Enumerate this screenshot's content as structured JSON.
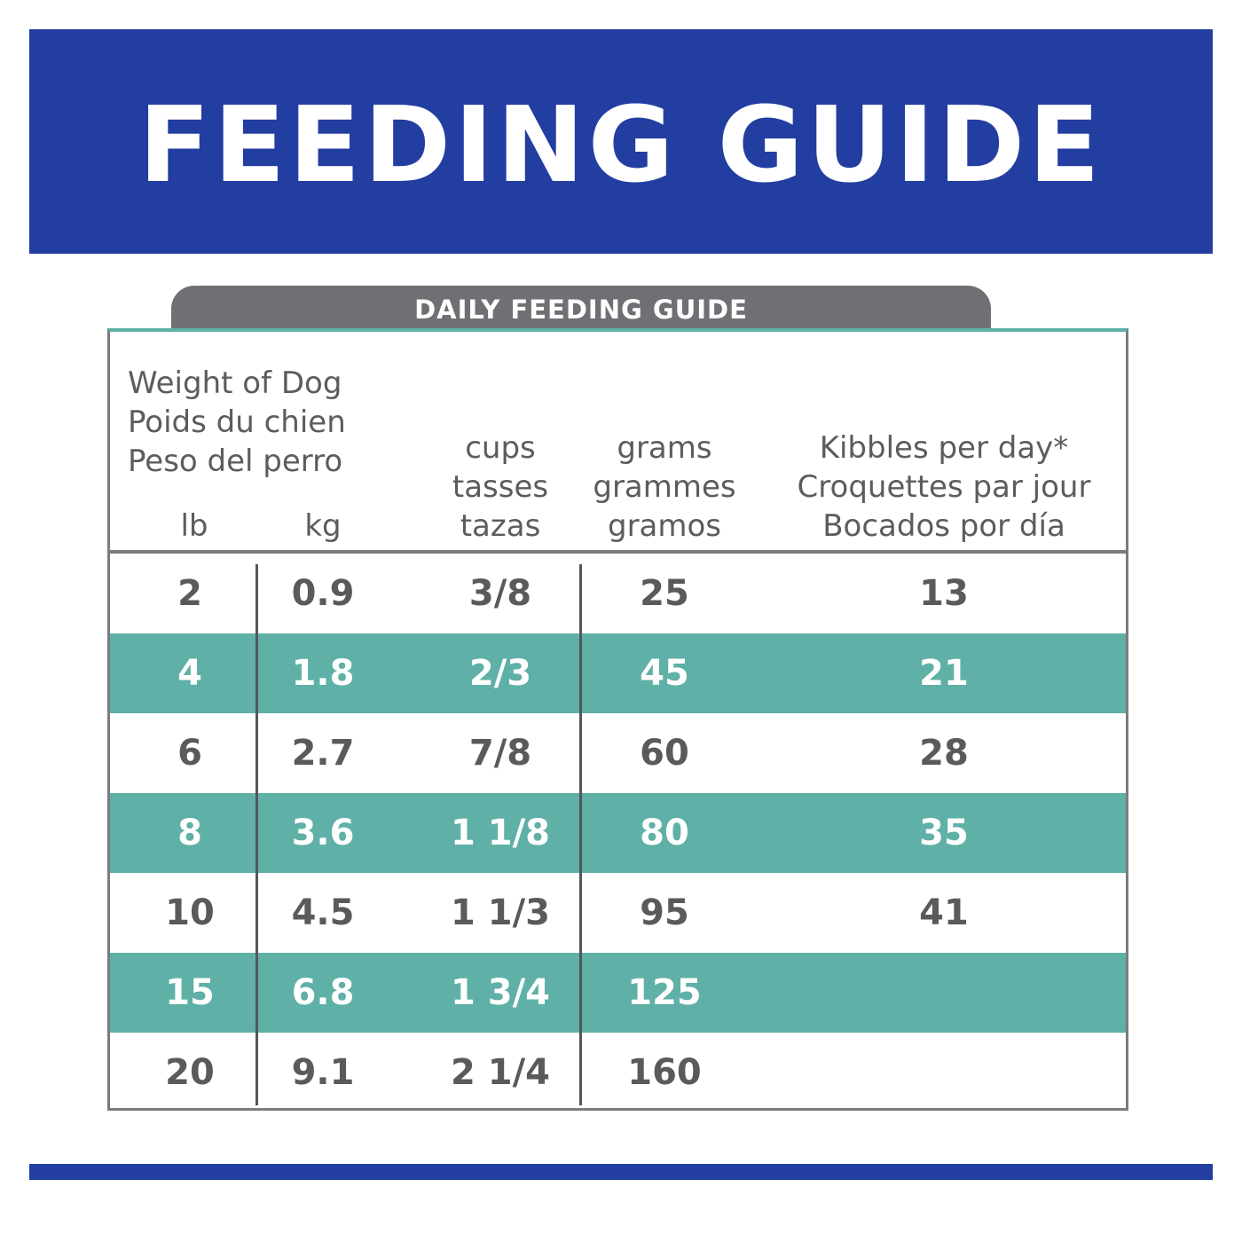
{
  "banner": {
    "title": "FEEDING GUIDE"
  },
  "guide": {
    "tab_label": "DAILY FEEDING GUIDE",
    "header": {
      "weight_line1": "Weight of Dog",
      "weight_line2": "Poids du chien",
      "weight_line3": "Peso del perro",
      "lb": "lb",
      "kg": "kg",
      "cups_line1": "cups",
      "cups_line2": "tasses",
      "cups_line3": "tazas",
      "grams_line1": "grams",
      "grams_line2": "grammes",
      "grams_line3": "gramos",
      "kibbles_line1": "Kibbles per day*",
      "kibbles_line2": "Croquettes par jour",
      "kibbles_line3": "Bocados por día"
    },
    "rows": [
      {
        "lb": "2",
        "kg": "0.9",
        "cups": "3/8",
        "grams": "25",
        "kibbles": "13"
      },
      {
        "lb": "4",
        "kg": "1.8",
        "cups": "2/3",
        "grams": "45",
        "kibbles": "21"
      },
      {
        "lb": "6",
        "kg": "2.7",
        "cups": "7/8",
        "grams": "60",
        "kibbles": "28"
      },
      {
        "lb": "8",
        "kg": "3.6",
        "cups": "1 1/8",
        "grams": "80",
        "kibbles": "35"
      },
      {
        "lb": "10",
        "kg": "4.5",
        "cups": "1 1/3",
        "grams": "95",
        "kibbles": "41"
      },
      {
        "lb": "15",
        "kg": "6.8",
        "cups": "1 3/4",
        "grams": "125",
        "kibbles": ""
      },
      {
        "lb": "20",
        "kg": "9.1",
        "cups": "2 1/4",
        "grams": "160",
        "kibbles": ""
      }
    ]
  },
  "colors": {
    "brand_blue": "#233ea1",
    "teal": "#5fb0a6",
    "tab_gray": "#6f7074"
  }
}
